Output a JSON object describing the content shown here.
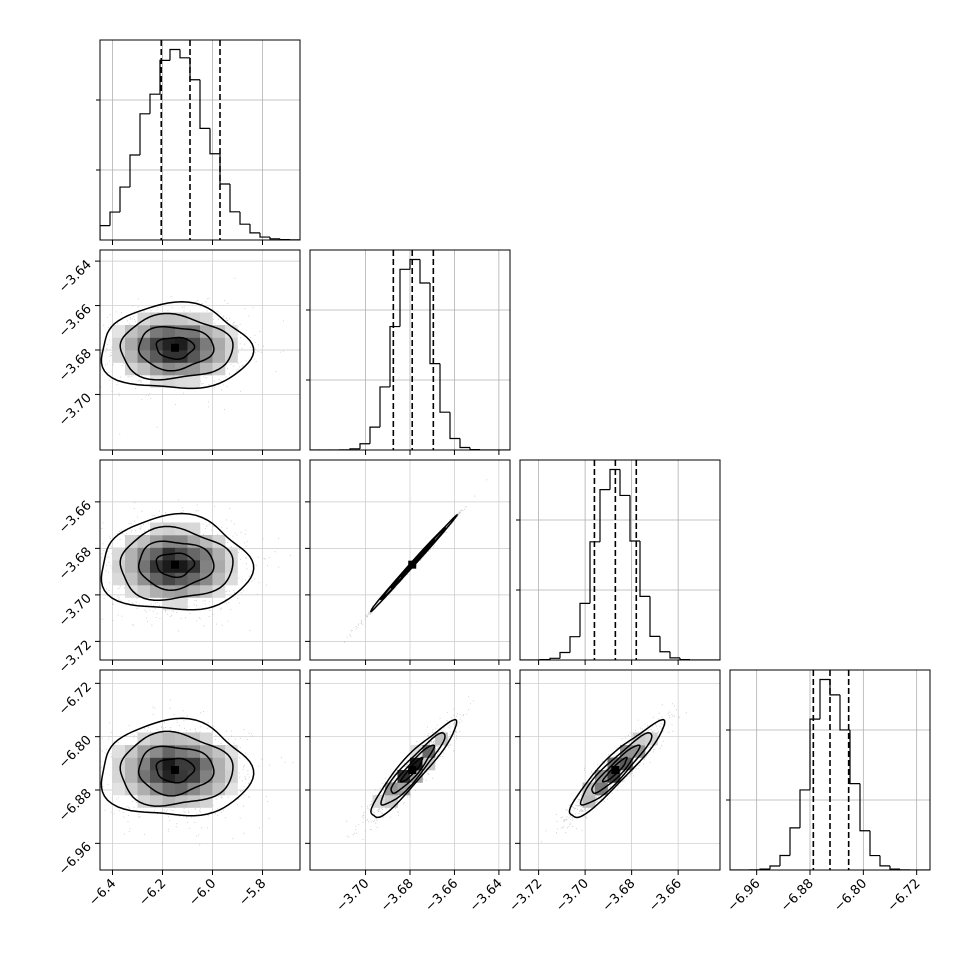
{
  "chart_data": {
    "type": "corner",
    "grid": true,
    "n_params": 4,
    "params": [
      {
        "range": [
          -6.45,
          -5.65
        ],
        "ticks": [
          -6.4,
          -6.2,
          -6.0,
          -5.8
        ],
        "tick_labels": [
          "−6.4",
          "−6.2",
          "−6.0",
          "−5.8"
        ],
        "center": -6.15,
        "sigma": 0.125,
        "quantiles": [
          -6.205,
          -6.09,
          -5.97
        ]
      },
      {
        "range": [
          -3.725,
          -3.635
        ],
        "ticks": [
          -3.7,
          -3.68,
          -3.66,
          -3.64
        ],
        "tick_labels": [
          "−3.70",
          "−3.68",
          "−3.66",
          "−3.64"
        ],
        "y_ticks": [
          -3.64,
          -3.66,
          -3.68,
          -3.7
        ],
        "y_tick_labels": [
          "−3.64",
          "−3.66",
          "−3.68",
          "−3.70"
        ],
        "center": -3.679,
        "sigma": 0.008,
        "quantiles": [
          -3.6875,
          -3.679,
          -3.6695
        ]
      },
      {
        "range": [
          -3.728,
          -3.642
        ],
        "ticks": [
          -3.72,
          -3.7,
          -3.68,
          -3.66
        ],
        "tick_labels": [
          "−3.72",
          "−3.70",
          "−3.68",
          "−3.66"
        ],
        "y_ticks": [
          -3.66,
          -3.68,
          -3.7,
          -3.72
        ],
        "y_tick_labels": [
          "−3.66",
          "−3.68",
          "−3.70",
          "−3.72"
        ],
        "center": -3.687,
        "sigma": 0.0085,
        "quantiles": [
          -3.696,
          -3.687,
          -3.678
        ]
      },
      {
        "range": [
          -7.0,
          -6.7
        ],
        "ticks": [
          -6.96,
          -6.88,
          -6.8,
          -6.72
        ],
        "tick_labels": [
          "−6.96",
          "−6.88",
          "−6.80",
          "−6.72"
        ],
        "y_ticks": [
          -6.72,
          -6.8,
          -6.88,
          -6.96
        ],
        "y_tick_labels": [
          "−6.72",
          "−6.80",
          "−6.88",
          "−6.96"
        ],
        "center": -6.85,
        "sigma": 0.03,
        "quantiles": [
          -6.875,
          -6.85,
          -6.822
        ]
      }
    ],
    "correlations": [
      [
        1,
        0,
        0,
        0
      ],
      [
        0,
        1,
        0.998,
        0.93
      ],
      [
        0,
        0.998,
        1,
        0.93
      ],
      [
        0,
        0.93,
        0.93,
        1
      ]
    ],
    "contour_levels_sigma": [
      0.5,
      1.0,
      1.5,
      2.0
    ]
  }
}
